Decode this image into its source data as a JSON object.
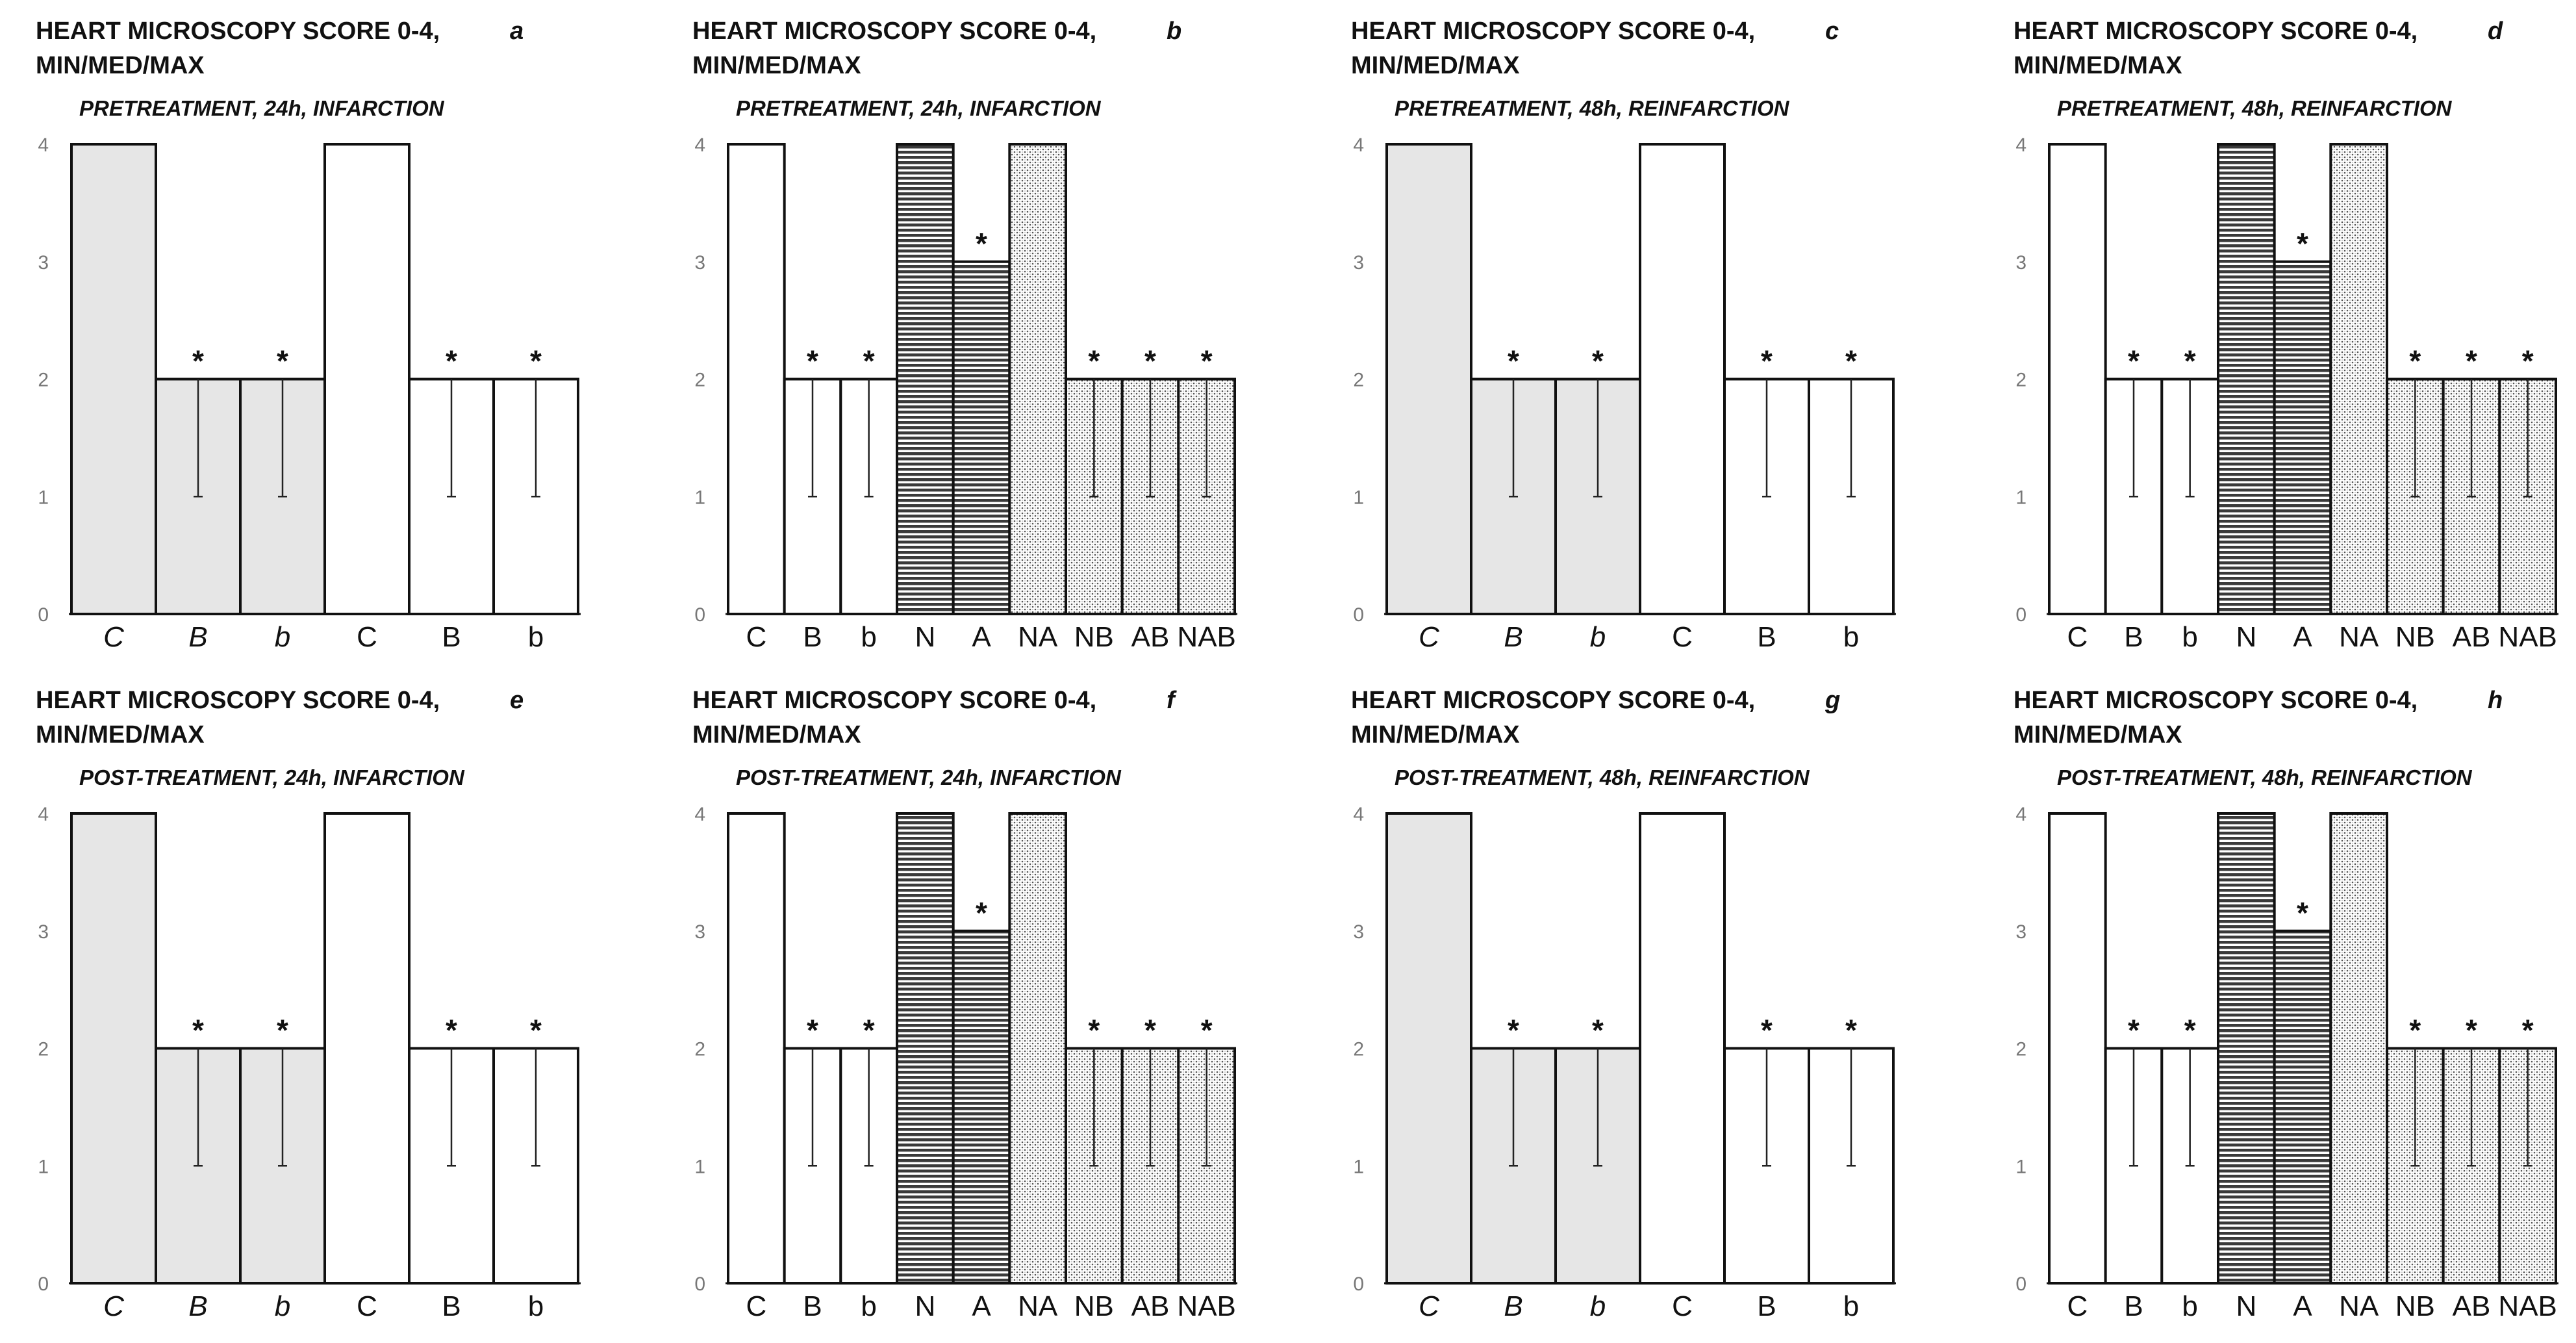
{
  "figure": {
    "colors": {
      "gray_fill": "#e6e6e6",
      "white_fill": "#ffffff",
      "outline": "#111111",
      "tick_text": "#777777"
    },
    "fills": {
      "gray": "solid light gray",
      "white": "solid white",
      "hstripe": "horizontal dense lines",
      "dots": "fine dotted"
    }
  },
  "chart_data": [
    {
      "panel": "a",
      "type": "bar",
      "title": "HEART MICROSCOPY SCORE 0-4,",
      "title2": "MIN/MED/MAX",
      "letter": "a",
      "subtitle": "PRETREATMENT, 24h, INFARCTION",
      "ylim": [
        0,
        4
      ],
      "yticks": [
        0,
        1,
        2,
        3,
        4
      ],
      "categories": [
        "C",
        "B",
        "b",
        "C",
        "B",
        "b"
      ],
      "italic": [
        true,
        true,
        true,
        false,
        false,
        false
      ],
      "values": [
        4,
        2,
        2,
        4,
        2,
        2
      ],
      "min": [
        4,
        1,
        1,
        4,
        1,
        1
      ],
      "max": [
        4,
        2,
        2,
        4,
        2,
        2
      ],
      "asterisk": [
        false,
        true,
        true,
        false,
        true,
        true
      ],
      "fill": [
        "gray",
        "gray",
        "gray",
        "white",
        "white",
        "white"
      ]
    },
    {
      "panel": "b",
      "type": "bar",
      "title": "HEART MICROSCOPY SCORE 0-4,",
      "title2": "MIN/MED/MAX",
      "letter": "b",
      "subtitle": "PRETREATMENT, 24h, INFARCTION",
      "ylim": [
        0,
        4
      ],
      "yticks": [
        0,
        1,
        2,
        3,
        4
      ],
      "categories": [
        "C",
        "B",
        "b",
        "N",
        "A",
        "NA",
        "NB",
        "AB",
        "NAB"
      ],
      "italic": [
        false,
        false,
        false,
        false,
        false,
        false,
        false,
        false,
        false
      ],
      "values": [
        4,
        2,
        2,
        4,
        3,
        4,
        2,
        2,
        2
      ],
      "min": [
        4,
        1,
        1,
        4,
        3,
        4,
        1,
        1,
        1
      ],
      "max": [
        4,
        2,
        2,
        4,
        3,
        4,
        2,
        2,
        2
      ],
      "asterisk": [
        false,
        true,
        true,
        false,
        true,
        false,
        true,
        true,
        true
      ],
      "fill": [
        "white",
        "white",
        "white",
        "hstripe",
        "hstripe",
        "dots",
        "dots",
        "dots",
        "dots"
      ]
    },
    {
      "panel": "c",
      "type": "bar",
      "title": "HEART MICROSCOPY SCORE 0-4,",
      "title2": "MIN/MED/MAX",
      "letter": "c",
      "subtitle": "PRETREATMENT, 48h, REINFARCTION",
      "ylim": [
        0,
        4
      ],
      "yticks": [
        0,
        1,
        2,
        3,
        4
      ],
      "categories": [
        "C",
        "B",
        "b",
        "C",
        "B",
        "b"
      ],
      "italic": [
        true,
        true,
        true,
        false,
        false,
        false
      ],
      "values": [
        4,
        2,
        2,
        4,
        2,
        2
      ],
      "min": [
        4,
        1,
        1,
        4,
        1,
        1
      ],
      "max": [
        4,
        2,
        2,
        4,
        2,
        2
      ],
      "asterisk": [
        false,
        true,
        true,
        false,
        true,
        true
      ],
      "fill": [
        "gray",
        "gray",
        "gray",
        "white",
        "white",
        "white"
      ]
    },
    {
      "panel": "d",
      "type": "bar",
      "title": "HEART MICROSCOPY SCORE 0-4,",
      "title2": "MIN/MED/MAX",
      "letter": "d",
      "subtitle": "PRETREATMENT, 48h, REINFARCTION",
      "ylim": [
        0,
        4
      ],
      "yticks": [
        0,
        1,
        2,
        3,
        4
      ],
      "categories": [
        "C",
        "B",
        "b",
        "N",
        "A",
        "NA",
        "NB",
        "AB",
        "NAB"
      ],
      "italic": [
        false,
        false,
        false,
        false,
        false,
        false,
        false,
        false,
        false
      ],
      "values": [
        4,
        2,
        2,
        4,
        3,
        4,
        2,
        2,
        2
      ],
      "min": [
        4,
        1,
        1,
        4,
        3,
        4,
        1,
        1,
        1
      ],
      "max": [
        4,
        2,
        2,
        4,
        3,
        4,
        2,
        2,
        2
      ],
      "asterisk": [
        false,
        true,
        true,
        false,
        true,
        false,
        true,
        true,
        true
      ],
      "fill": [
        "white",
        "white",
        "white",
        "hstripe",
        "hstripe",
        "dots",
        "dots",
        "dots",
        "dots"
      ]
    },
    {
      "panel": "e",
      "type": "bar",
      "title": "HEART MICROSCOPY SCORE 0-4,",
      "title2": "MIN/MED/MAX",
      "letter": "e",
      "subtitle": "POST-TREATMENT, 24h, INFARCTION",
      "ylim": [
        0,
        4
      ],
      "yticks": [
        0,
        1,
        2,
        3,
        4
      ],
      "categories": [
        "C",
        "B",
        "b",
        "C",
        "B",
        "b"
      ],
      "italic": [
        true,
        true,
        true,
        false,
        false,
        false
      ],
      "values": [
        4,
        2,
        2,
        4,
        2,
        2
      ],
      "min": [
        4,
        1,
        1,
        4,
        1,
        1
      ],
      "max": [
        4,
        2,
        2,
        4,
        2,
        2
      ],
      "asterisk": [
        false,
        true,
        true,
        false,
        true,
        true
      ],
      "fill": [
        "gray",
        "gray",
        "gray",
        "white",
        "white",
        "white"
      ]
    },
    {
      "panel": "f",
      "type": "bar",
      "title": "HEART MICROSCOPY SCORE 0-4,",
      "title2": "MIN/MED/MAX",
      "letter": "f",
      "subtitle": "POST-TREATMENT, 24h, INFARCTION",
      "ylim": [
        0,
        4
      ],
      "yticks": [
        0,
        1,
        2,
        3,
        4
      ],
      "categories": [
        "C",
        "B",
        "b",
        "N",
        "A",
        "NA",
        "NB",
        "AB",
        "NAB"
      ],
      "italic": [
        false,
        false,
        false,
        false,
        false,
        false,
        false,
        false,
        false
      ],
      "values": [
        4,
        2,
        2,
        4,
        3,
        4,
        2,
        2,
        2
      ],
      "min": [
        4,
        1,
        1,
        4,
        3,
        4,
        1,
        1,
        1
      ],
      "max": [
        4,
        2,
        2,
        4,
        3,
        4,
        2,
        2,
        2
      ],
      "asterisk": [
        false,
        true,
        true,
        false,
        true,
        false,
        true,
        true,
        true
      ],
      "fill": [
        "white",
        "white",
        "white",
        "hstripe",
        "hstripe",
        "dots",
        "dots",
        "dots",
        "dots"
      ]
    },
    {
      "panel": "g",
      "type": "bar",
      "title": "HEART MICROSCOPY SCORE 0-4,",
      "title2": "MIN/MED/MAX",
      "letter": "g",
      "subtitle": "POST-TREATMENT, 48h, REINFARCTION",
      "ylim": [
        0,
        4
      ],
      "yticks": [
        0,
        1,
        2,
        3,
        4
      ],
      "categories": [
        "C",
        "B",
        "b",
        "C",
        "B",
        "b"
      ],
      "italic": [
        true,
        true,
        true,
        false,
        false,
        false
      ],
      "values": [
        4,
        2,
        2,
        4,
        2,
        2
      ],
      "min": [
        4,
        1,
        1,
        4,
        1,
        1
      ],
      "max": [
        4,
        2,
        2,
        4,
        2,
        2
      ],
      "asterisk": [
        false,
        true,
        true,
        false,
        true,
        true
      ],
      "fill": [
        "gray",
        "gray",
        "gray",
        "white",
        "white",
        "white"
      ]
    },
    {
      "panel": "h",
      "type": "bar",
      "title": "HEART MICROSCOPY SCORE 0-4,",
      "title2": "MIN/MED/MAX",
      "letter": "h",
      "subtitle": "POST-TREATMENT, 48h, REINFARCTION",
      "ylim": [
        0,
        4
      ],
      "yticks": [
        0,
        1,
        2,
        3,
        4
      ],
      "categories": [
        "C",
        "B",
        "b",
        "N",
        "A",
        "NA",
        "NB",
        "AB",
        "NAB"
      ],
      "italic": [
        false,
        false,
        false,
        false,
        false,
        false,
        false,
        false,
        false
      ],
      "values": [
        4,
        2,
        2,
        4,
        3,
        4,
        2,
        2,
        2
      ],
      "min": [
        4,
        1,
        1,
        4,
        3,
        4,
        1,
        1,
        1
      ],
      "max": [
        4,
        2,
        2,
        4,
        3,
        4,
        2,
        2,
        2
      ],
      "asterisk": [
        false,
        true,
        true,
        false,
        true,
        false,
        true,
        true,
        true
      ],
      "fill": [
        "white",
        "white",
        "white",
        "hstripe",
        "hstripe",
        "dots",
        "dots",
        "dots",
        "dots"
      ]
    }
  ]
}
